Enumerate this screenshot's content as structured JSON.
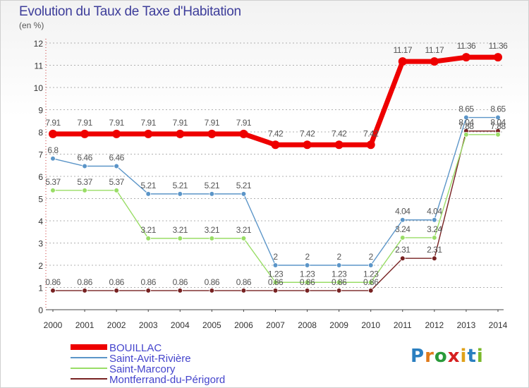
{
  "title": "Evolution du Taux de Taxe d'Habitation",
  "unit_label": "(en %)",
  "logo_text": "Proxiti",
  "colors": {
    "grid": "#b0b0b0",
    "axis_text": "#333333",
    "label_text": "#555555",
    "legend_text": "#4444cc"
  },
  "chart_data": {
    "type": "line",
    "x": [
      2000,
      2001,
      2002,
      2003,
      2004,
      2005,
      2006,
      2007,
      2008,
      2009,
      2010,
      2011,
      2012,
      2013,
      2014
    ],
    "ylim": [
      0,
      12
    ],
    "yticks": [
      0,
      1,
      2,
      3,
      4,
      5,
      6,
      7,
      8,
      9,
      10,
      11,
      12
    ],
    "grid": "horizontal dashed",
    "legend_position": "bottom-left",
    "series": [
      {
        "name": "BOUILLAC",
        "color": "#ee0000",
        "values": [
          7.91,
          7.91,
          7.91,
          7.91,
          7.91,
          7.91,
          7.91,
          7.42,
          7.42,
          7.42,
          7.42,
          11.17,
          11.17,
          11.36,
          11.36
        ],
        "labels": [
          "7.91",
          "7.91",
          "7.91",
          "7.91",
          "7.91",
          "7.91",
          "7.91",
          "7.42",
          "7.42",
          "7.42",
          "7.42",
          "11.17",
          "11.17",
          "11.36",
          "11.36"
        ]
      },
      {
        "name": "Saint-Avit-Rivière",
        "color": "#5b95c8",
        "values": [
          6.8,
          6.46,
          6.46,
          5.21,
          5.21,
          5.21,
          5.21,
          2,
          2,
          2,
          2,
          4.04,
          4.04,
          8.65,
          8.65
        ],
        "labels": [
          "6.8",
          "6.46",
          "6.46",
          "5.21",
          "5.21",
          "5.21",
          "5.21",
          "2",
          "2",
          "2",
          "2",
          "4.04",
          "4.04",
          "8.65",
          "8.65"
        ]
      },
      {
        "name": "Saint-Marcory",
        "color": "#99dd66",
        "values": [
          5.37,
          5.37,
          5.37,
          3.21,
          3.21,
          3.21,
          3.21,
          1.23,
          1.23,
          1.23,
          1.23,
          3.24,
          3.24,
          7.88,
          7.88
        ],
        "labels": [
          "5.37",
          "5.37",
          "5.37",
          "3.21",
          "3.21",
          "3.21",
          "3.21",
          "1.23",
          "1.23",
          "1.23",
          "1.23",
          "3.24",
          "3.24",
          "7.88",
          "7.88"
        ]
      },
      {
        "name": "Montferrand-du-Périgord",
        "color": "#772222",
        "values": [
          0.86,
          0.86,
          0.86,
          0.86,
          0.86,
          0.86,
          0.86,
          0.86,
          0.86,
          0.86,
          0.86,
          2.31,
          2.31,
          8.04,
          8.04
        ],
        "labels": [
          "0.86",
          "0.86",
          "0.86",
          "0.86",
          "0.86",
          "0.86",
          "0.86",
          "0.86",
          "0.86",
          "0.86",
          "0.86",
          "2.31",
          "2.31",
          "8.04",
          "8.04"
        ]
      }
    ]
  }
}
